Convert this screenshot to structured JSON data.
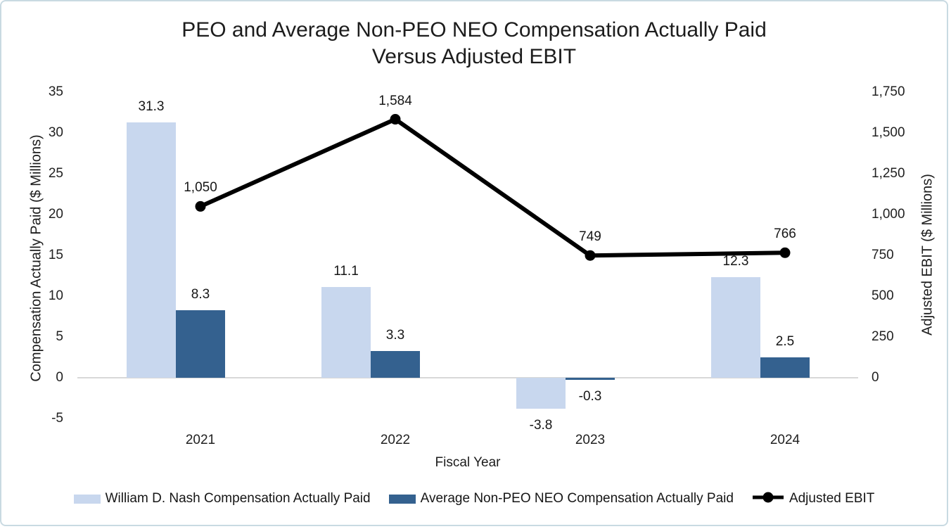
{
  "title": {
    "line1": "PEO and Average Non-PEO NEO Compensation Actually Paid",
    "line2": "Versus Adjusted EBIT"
  },
  "chart_data": {
    "type": "combo-bar-line",
    "categories": [
      "2021",
      "2022",
      "2023",
      "2024"
    ],
    "series": [
      {
        "name": "William D. Nash Compensation Actually Paid",
        "type": "bar",
        "axis": "left",
        "color": "#c8d7ee",
        "values": [
          31.3,
          11.1,
          -3.8,
          12.3
        ],
        "labels": [
          "31.3",
          "11.1",
          "-3.8",
          "12.3"
        ]
      },
      {
        "name": "Average Non-PEO NEO Compensation Actually Paid",
        "type": "bar",
        "axis": "left",
        "color": "#34618f",
        "values": [
          8.3,
          3.3,
          -0.3,
          2.5
        ],
        "labels": [
          "8.3",
          "3.3",
          "-0.3",
          "2.5"
        ]
      },
      {
        "name": "Adjusted EBIT",
        "type": "line",
        "axis": "right",
        "color": "#000000",
        "values": [
          1050,
          1584,
          749,
          766
        ],
        "labels": [
          "1,050",
          "1,584",
          "749",
          "766"
        ]
      }
    ],
    "left_axis": {
      "title": "Compensation Actually Paid ($ Millions)",
      "ticks": [
        35,
        30,
        25,
        20,
        15,
        10,
        5,
        0,
        -5
      ],
      "tick_labels": [
        "35",
        "30",
        "25",
        "20",
        "15",
        "10",
        "5",
        "0",
        "-5"
      ],
      "range": [
        -7.5,
        35
      ]
    },
    "right_axis": {
      "title": "Adjusted EBIT ($ Millions)",
      "ticks": [
        1750,
        1500,
        1250,
        1000,
        750,
        500,
        250,
        0
      ],
      "tick_labels": [
        "1,750",
        "1,500",
        "1,250",
        "1,000",
        "750",
        "500",
        "250",
        "0"
      ],
      "range": [
        -375,
        1750
      ]
    },
    "x_axis": {
      "title": "Fiscal Year"
    },
    "legend_position": "bottom",
    "grid": false,
    "colors": {
      "bar_light": "#c8d7ee",
      "bar_dark": "#34618f",
      "line": "#000000",
      "axis_line": "#d8d8d8",
      "text": "#1c1c1c",
      "frame_border": "#c9dae2"
    }
  }
}
